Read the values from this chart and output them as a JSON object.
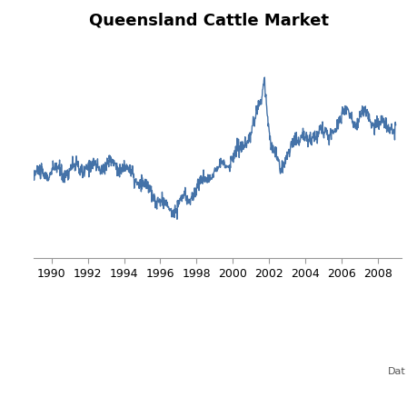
{
  "title": "Queensland Cattle Market",
  "annotation": "Dat",
  "line_color": "#4472a8",
  "line_width": 1.0,
  "background_color": "#ffffff",
  "grid_color": "#c8d0dc",
  "x_tick_years": [
    1990,
    1992,
    1994,
    1996,
    1998,
    2000,
    2002,
    2004,
    2006,
    2008
  ],
  "title_fontsize": 13,
  "tick_fontsize": 9,
  "ylim": [
    0,
    300
  ],
  "xlim": [
    1989.0,
    2009.3
  ]
}
